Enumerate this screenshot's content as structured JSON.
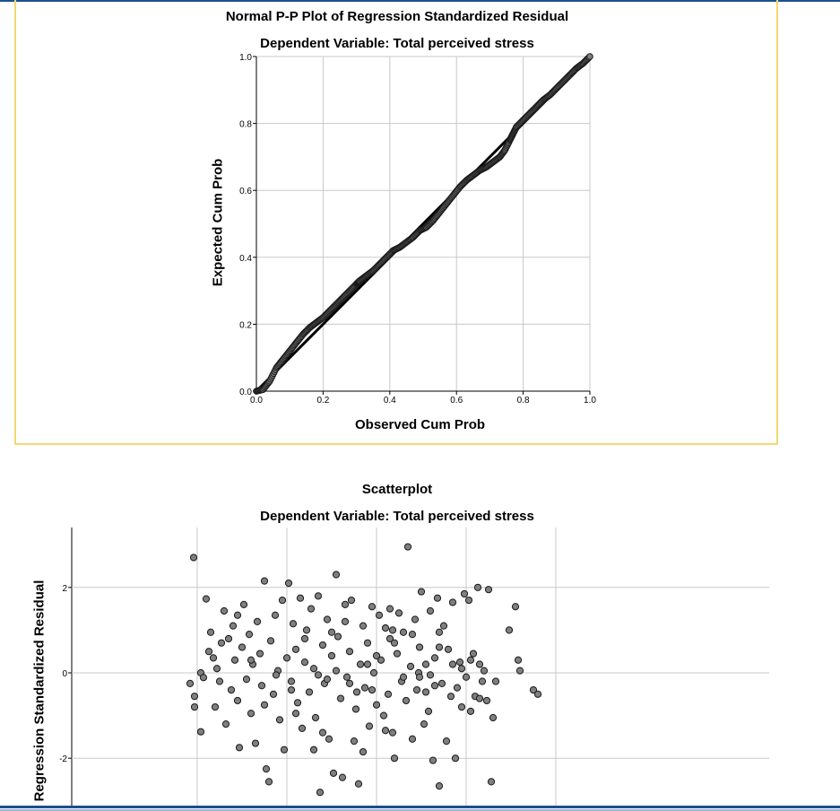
{
  "charts": {
    "pp": {
      "title": "Normal P-P Plot of Regression Standardized Residual",
      "subtitle": "Dependent Variable: Total perceived stress",
      "xlabel": "Observed Cum Prob",
      "ylabel": "Expected Cum Prob"
    },
    "scatter": {
      "title": "Scatterplot",
      "subtitle": "Dependent Variable: Total perceived stress",
      "ylabel": "Regression Standardized Residual"
    }
  },
  "colors": {
    "frame": "#f2d872",
    "grid": "#c8c8c8",
    "point_fill": "#7f7f7f",
    "point_stroke": "#1a1a1a",
    "window_line": "#1e4f8e"
  },
  "chart_data": [
    {
      "type": "scatter",
      "title": "Normal P-P Plot of Regression Standardized Residual",
      "subtitle": "Dependent Variable: Total perceived stress",
      "xlabel": "Observed Cum Prob",
      "ylabel": "Expected Cum Prob",
      "xlim": [
        0,
        1
      ],
      "ylim": [
        0,
        1
      ],
      "xticks": [
        "0.0",
        "0.2",
        "0.4",
        "0.6",
        "0.8",
        "1.0"
      ],
      "yticks": [
        "0.0",
        "0.2",
        "0.4",
        "0.6",
        "0.8",
        "1.0"
      ],
      "grid": true,
      "reference_line": [
        [
          0,
          0
        ],
        [
          1,
          1
        ]
      ],
      "curve": [
        [
          0,
          0
        ],
        [
          0.02,
          0.005
        ],
        [
          0.04,
          0.03
        ],
        [
          0.06,
          0.07
        ],
        [
          0.08,
          0.095
        ],
        [
          0.1,
          0.12
        ],
        [
          0.12,
          0.145
        ],
        [
          0.14,
          0.17
        ],
        [
          0.16,
          0.19
        ],
        [
          0.18,
          0.205
        ],
        [
          0.2,
          0.22
        ],
        [
          0.22,
          0.24
        ],
        [
          0.24,
          0.26
        ],
        [
          0.26,
          0.28
        ],
        [
          0.28,
          0.3
        ],
        [
          0.3,
          0.32
        ],
        [
          0.31,
          0.33
        ],
        [
          0.33,
          0.345
        ],
        [
          0.35,
          0.36
        ],
        [
          0.37,
          0.38
        ],
        [
          0.39,
          0.4
        ],
        [
          0.41,
          0.42
        ],
        [
          0.43,
          0.43
        ],
        [
          0.45,
          0.445
        ],
        [
          0.47,
          0.46
        ],
        [
          0.49,
          0.48
        ],
        [
          0.51,
          0.49
        ],
        [
          0.53,
          0.51
        ],
        [
          0.55,
          0.535
        ],
        [
          0.57,
          0.56
        ],
        [
          0.59,
          0.585
        ],
        [
          0.61,
          0.61
        ],
        [
          0.63,
          0.63
        ],
        [
          0.65,
          0.645
        ],
        [
          0.67,
          0.66
        ],
        [
          0.69,
          0.67
        ],
        [
          0.71,
          0.685
        ],
        [
          0.73,
          0.7
        ],
        [
          0.745,
          0.72
        ],
        [
          0.76,
          0.75
        ],
        [
          0.77,
          0.77
        ],
        [
          0.78,
          0.79
        ],
        [
          0.8,
          0.81
        ],
        [
          0.82,
          0.83
        ],
        [
          0.84,
          0.85
        ],
        [
          0.86,
          0.87
        ],
        [
          0.88,
          0.885
        ],
        [
          0.9,
          0.905
        ],
        [
          0.92,
          0.925
        ],
        [
          0.94,
          0.945
        ],
        [
          0.96,
          0.965
        ],
        [
          0.98,
          0.98
        ],
        [
          1.0,
          1.0
        ]
      ]
    },
    {
      "type": "scatter",
      "title": "Scatterplot",
      "subtitle": "Dependent Variable: Total perceived stress",
      "xlabel": "",
      "ylabel": "Regression Standardized Residual",
      "ylim": [
        -3.1,
        3.3
      ],
      "xlim": [
        -2.6,
        2.6
      ],
      "yticks": [
        -2,
        0,
        2
      ],
      "xgrid": [
        -2,
        -1,
        0,
        1,
        2
      ],
      "points": [
        [
          -2.08,
          -0.25
        ],
        [
          -2.03,
          -0.55
        ],
        [
          -2.03,
          -0.8
        ],
        [
          -1.96,
          -1.38
        ],
        [
          -2.04,
          2.7
        ],
        [
          -1.96,
          0.0
        ],
        [
          -1.93,
          -0.11
        ],
        [
          -1.9,
          1.73
        ],
        [
          -1.87,
          0.5
        ],
        [
          -1.85,
          0.95
        ],
        [
          -1.82,
          0.35
        ],
        [
          -1.8,
          -0.8
        ],
        [
          -1.78,
          0.1
        ],
        [
          -1.75,
          -0.2
        ],
        [
          -1.73,
          0.7
        ],
        [
          -1.7,
          1.45
        ],
        [
          -1.68,
          -1.2
        ],
        [
          -1.65,
          0.8
        ],
        [
          -1.62,
          -0.4
        ],
        [
          -1.6,
          1.1
        ],
        [
          -1.58,
          0.3
        ],
        [
          -1.55,
          -0.65
        ],
        [
          -1.53,
          -1.75
        ],
        [
          -1.5,
          0.6
        ],
        [
          -1.48,
          1.6
        ],
        [
          -1.45,
          -0.15
        ],
        [
          -1.42,
          0.9
        ],
        [
          -1.4,
          -0.95
        ],
        [
          -1.38,
          0.2
        ],
        [
          -1.35,
          -1.65
        ],
        [
          -1.33,
          1.2
        ],
        [
          -1.3,
          0.45
        ],
        [
          -1.28,
          -0.3
        ],
        [
          -1.25,
          2.15
        ],
        [
          -1.23,
          -2.25
        ],
        [
          -1.2,
          -2.55
        ],
        [
          -1.18,
          0.75
        ],
        [
          -1.15,
          -0.5
        ],
        [
          -1.13,
          1.35
        ],
        [
          -1.1,
          0.05
        ],
        [
          -1.08,
          -1.1
        ],
        [
          -1.05,
          1.7
        ],
        [
          -1.03,
          -1.8
        ],
        [
          -1.0,
          0.35
        ],
        [
          -0.98,
          2.1
        ],
        [
          -0.95,
          -0.2
        ],
        [
          -0.93,
          1.15
        ],
        [
          -0.9,
          0.55
        ],
        [
          -0.88,
          -0.7
        ],
        [
          -0.85,
          1.75
        ],
        [
          -0.83,
          -1.3
        ],
        [
          -0.8,
          0.25
        ],
        [
          -0.78,
          1.0
        ],
        [
          -0.75,
          -0.45
        ],
        [
          -0.73,
          1.5
        ],
        [
          -0.7,
          0.1
        ],
        [
          -0.68,
          -1.05
        ],
        [
          -0.65,
          1.8
        ],
        [
          -0.63,
          -2.8
        ],
        [
          -0.6,
          0.65
        ],
        [
          -0.58,
          -0.25
        ],
        [
          -0.55,
          1.25
        ],
        [
          -0.53,
          -1.55
        ],
        [
          -0.5,
          0.4
        ],
        [
          -0.48,
          -2.35
        ],
        [
          -0.45,
          2.3
        ],
        [
          -0.43,
          0.85
        ],
        [
          -0.4,
          -0.6
        ],
        [
          -0.38,
          -2.45
        ],
        [
          -0.35,
          1.6
        ],
        [
          -0.33,
          -0.1
        ],
        [
          -0.3,
          0.5
        ],
        [
          -0.28,
          1.7
        ],
        [
          -0.25,
          -1.6
        ],
        [
          -0.23,
          -0.85
        ],
        [
          -0.2,
          -2.6
        ],
        [
          -0.18,
          0.2
        ],
        [
          -0.15,
          1.1
        ],
        [
          -0.13,
          -0.35
        ],
        [
          -0.1,
          0.7
        ],
        [
          -0.08,
          -1.25
        ],
        [
          -0.05,
          1.55
        ],
        [
          -0.03,
          0.0
        ],
        [
          0.0,
          -0.75
        ],
        [
          0.03,
          1.35
        ],
        [
          0.05,
          0.3
        ],
        [
          0.08,
          -1.0
        ],
        [
          0.1,
          1.05
        ],
        [
          0.13,
          -0.5
        ],
        [
          0.15,
          0.8
        ],
        [
          0.18,
          -1.4
        ],
        [
          0.2,
          -2.0
        ],
        [
          0.23,
          0.45
        ],
        [
          0.25,
          1.4
        ],
        [
          0.28,
          -0.2
        ],
        [
          0.3,
          0.95
        ],
        [
          0.33,
          -0.65
        ],
        [
          0.35,
          2.95
        ],
        [
          0.38,
          0.15
        ],
        [
          0.4,
          -1.55
        ],
        [
          0.43,
          1.25
        ],
        [
          0.45,
          -0.4
        ],
        [
          0.48,
          0.6
        ],
        [
          0.5,
          1.9
        ],
        [
          0.53,
          -1.2
        ],
        [
          0.55,
          0.2
        ],
        [
          0.58,
          -0.9
        ],
        [
          0.6,
          1.45
        ],
        [
          0.63,
          -2.05
        ],
        [
          0.65,
          0.35
        ],
        [
          0.68,
          1.75
        ],
        [
          0.7,
          -2.65
        ],
        [
          0.73,
          -0.25
        ],
        [
          0.75,
          1.1
        ],
        [
          0.78,
          -1.6
        ],
        [
          0.8,
          0.55
        ],
        [
          0.83,
          -0.55
        ],
        [
          0.85,
          1.65
        ],
        [
          0.88,
          -2.0
        ],
        [
          0.9,
          -0.35
        ],
        [
          0.93,
          0.25
        ],
        [
          0.95,
          -0.8
        ],
        [
          0.98,
          1.85
        ],
        [
          1.0,
          -0.1
        ],
        [
          1.03,
          1.7
        ],
        [
          1.05,
          -0.9
        ],
        [
          1.08,
          0.45
        ],
        [
          1.1,
          -0.55
        ],
        [
          1.13,
          2.0
        ],
        [
          1.15,
          -0.6
        ],
        [
          1.18,
          -0.2
        ],
        [
          1.2,
          0.05
        ],
        [
          1.23,
          -0.65
        ],
        [
          1.25,
          1.95
        ],
        [
          1.28,
          -2.55
        ],
        [
          1.3,
          -1.05
        ],
        [
          1.33,
          -0.2
        ],
        [
          1.48,
          1.0
        ],
        [
          1.55,
          1.55
        ],
        [
          1.58,
          0.3
        ],
        [
          1.6,
          0.05
        ],
        [
          1.75,
          -0.4
        ],
        [
          1.8,
          -0.5
        ],
        [
          -0.9,
          -0.95
        ],
        [
          -0.7,
          -1.8
        ],
        [
          -0.6,
          -1.4
        ],
        [
          -0.15,
          -1.85
        ],
        [
          0.1,
          -1.35
        ],
        [
          0.47,
          0.0
        ],
        [
          0.6,
          -0.05
        ],
        [
          -1.12,
          -0.05
        ],
        [
          -0.95,
          -0.4
        ],
        [
          -0.5,
          0.95
        ],
        [
          -0.22,
          -0.45
        ],
        [
          0.2,
          0.7
        ],
        [
          0.7,
          0.6
        ],
        [
          -0.45,
          0.05
        ],
        [
          -0.65,
          -0.05
        ],
        [
          0.3,
          -0.1
        ],
        [
          0.85,
          0.2
        ],
        [
          -1.55,
          1.35
        ],
        [
          -0.3,
          -0.25
        ],
        [
          0.0,
          0.4
        ],
        [
          0.4,
          0.9
        ],
        [
          0.95,
          0.1
        ],
        [
          1.05,
          0.3
        ],
        [
          -1.25,
          -0.75
        ],
        [
          -0.05,
          -0.4
        ],
        [
          0.18,
          1.0
        ],
        [
          0.55,
          -0.45
        ],
        [
          -0.8,
          0.8
        ],
        [
          0.7,
          0.95
        ],
        [
          -0.35,
          1.2
        ],
        [
          0.15,
          1.5
        ],
        [
          -1.4,
          0.3
        ],
        [
          -0.55,
          -0.15
        ],
        [
          0.65,
          -0.3
        ],
        [
          1.15,
          0.2
        ],
        [
          0.48,
          -0.1
        ],
        [
          -0.1,
          0.2
        ]
      ]
    }
  ]
}
